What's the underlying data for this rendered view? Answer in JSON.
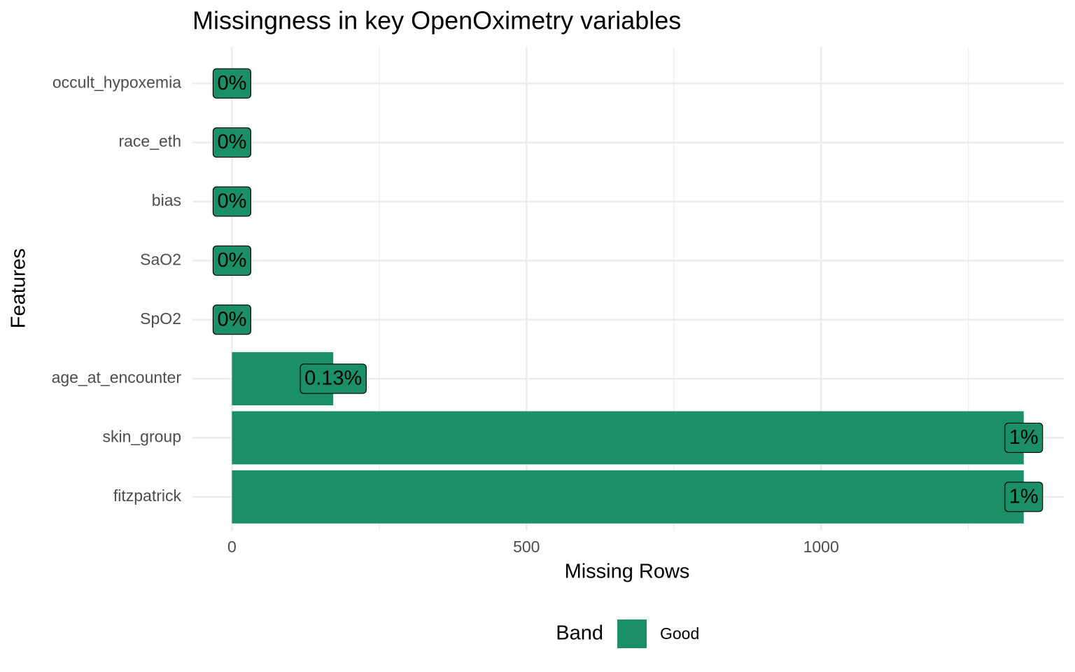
{
  "chart_data": {
    "type": "barh",
    "title": "Missingness in key OpenOximetry variables",
    "x_label": "Missing Rows",
    "y_label": "Features",
    "categories": [
      "occult_hypoxemia",
      "race_eth",
      "bias",
      "SaO2",
      "SpO2",
      "age_at_encounter",
      "skin_group",
      "fitzpatrick"
    ],
    "series": [
      {
        "name": "Good",
        "color": "#1b9066",
        "values": [
          0,
          0,
          0,
          0,
          0,
          172,
          1344,
          1344
        ]
      }
    ],
    "bar_labels": [
      "0%",
      "0%",
      "0%",
      "0%",
      "0%",
      "0.13%",
      "1%",
      "1%"
    ],
    "xlim": [
      -67,
      1412
    ],
    "xticks": [
      0,
      500,
      1000
    ],
    "minor_xticks": [
      250,
      750,
      1250
    ],
    "grid": true,
    "legend_title": "Band",
    "legend_position": "bottom"
  }
}
